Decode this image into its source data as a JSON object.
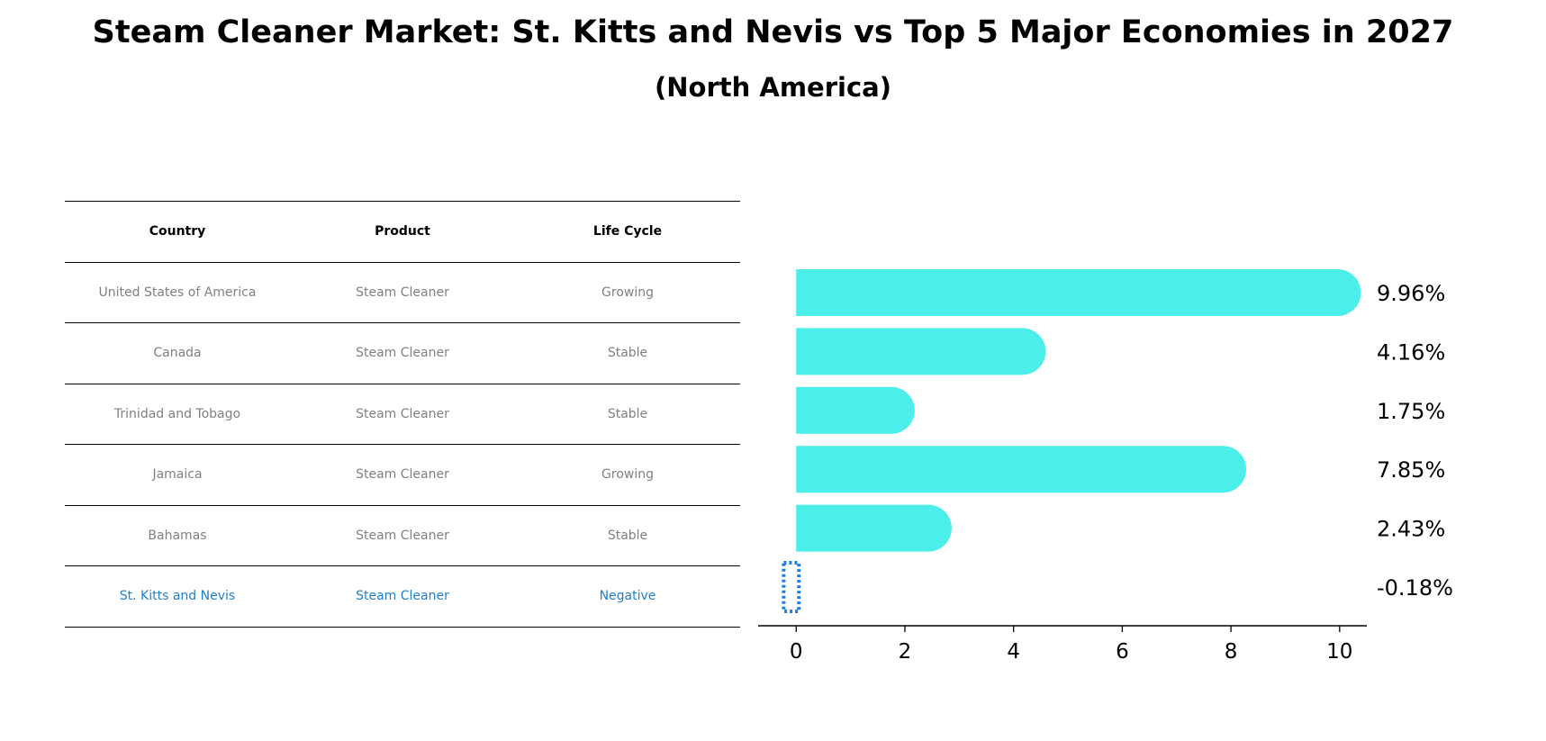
{
  "header": {
    "title": "Steam Cleaner Market: St. Kitts and Nevis vs Top 5 Major Economies in 2027",
    "subtitle": "(North America)"
  },
  "table": {
    "columns": [
      "Country",
      "Product",
      "Life Cycle"
    ],
    "rows": [
      [
        "United States of America",
        "Steam Cleaner",
        "Growing"
      ],
      [
        "Canada",
        "Steam Cleaner",
        "Stable"
      ],
      [
        "Trinidad and Tobago",
        "Steam Cleaner",
        "Stable"
      ],
      [
        "Jamaica",
        "Steam Cleaner",
        "Growing"
      ],
      [
        "Bahamas",
        "Steam Cleaner",
        "Stable"
      ],
      [
        "St. Kitts and Nevis",
        "Steam Cleaner",
        "Negative"
      ]
    ],
    "highlight_color": "#1f7fce"
  },
  "chart_data": {
    "type": "bar",
    "orientation": "horizontal",
    "categories": [
      "United States of America",
      "Canada",
      "Trinidad and Tobago",
      "Jamaica",
      "Bahamas",
      "St. Kitts and Nevis"
    ],
    "values": [
      9.96,
      4.16,
      1.75,
      7.85,
      2.43,
      -0.18
    ],
    "value_labels": [
      "9.96%",
      "4.16%",
      "1.75%",
      "7.85%",
      "2.43%",
      "-0.18%"
    ],
    "xlim": [
      -0.7,
      10.5
    ],
    "xticks": [
      0,
      2,
      4,
      6,
      8,
      10
    ],
    "bar_color": "#4beee8",
    "negative_color": "#1f7fe8",
    "grid": false
  }
}
